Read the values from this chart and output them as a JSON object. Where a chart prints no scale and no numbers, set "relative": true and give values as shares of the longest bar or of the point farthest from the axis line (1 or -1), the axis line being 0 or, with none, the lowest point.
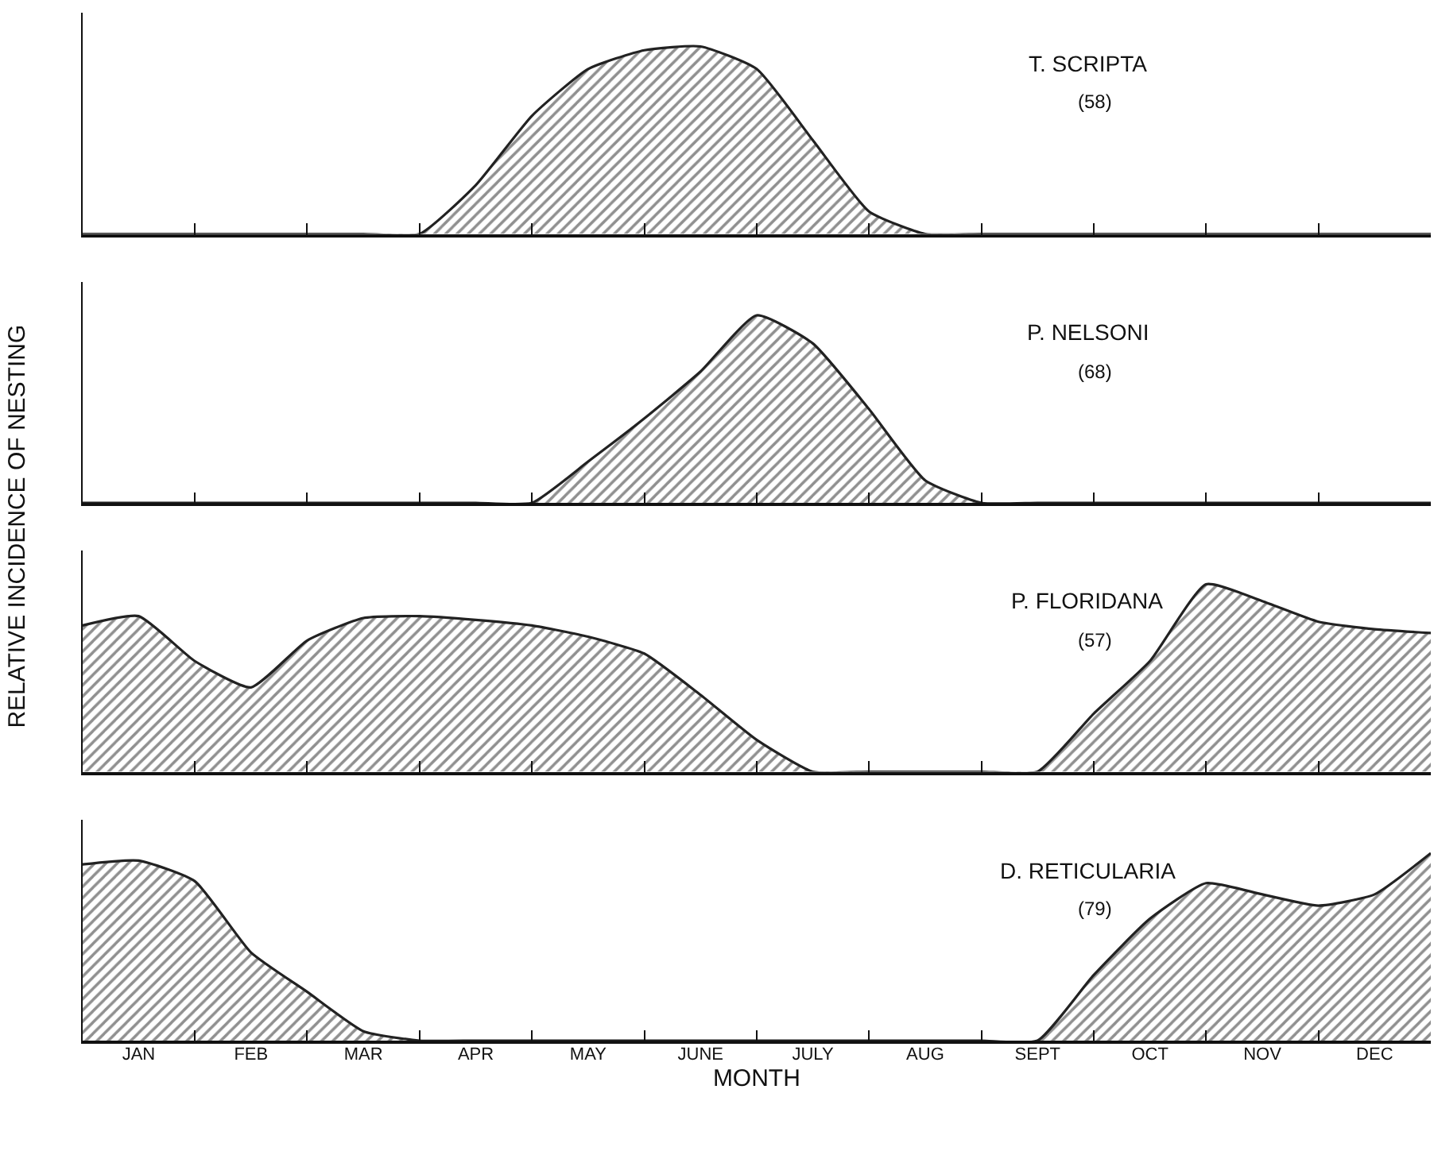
{
  "chart_data": [
    {
      "type": "area",
      "relative": true,
      "title": "T. SCRIPTA",
      "subtitle": "(58)",
      "ylabel": "RELATIVE INCIDENCE OF NESTING",
      "tick_labels": false,
      "categories": [
        null,
        null,
        null,
        null,
        null,
        null,
        null,
        null,
        null,
        null,
        null,
        null,
        null,
        null,
        null,
        null,
        null,
        null,
        null,
        null,
        null,
        null,
        null,
        null,
        null
      ],
      "series": [
        {
          "color": "#222222",
          "values": [
            0,
            0,
            0,
            0,
            0,
            0,
            0,
            0.26,
            0.63,
            0.88,
            0.98,
            1.0,
            0.88,
            0.5,
            0.12,
            0,
            0,
            0,
            0,
            0,
            0,
            0,
            0,
            0,
            0
          ]
        }
      ]
    },
    {
      "type": "area",
      "relative": true,
      "title": "P. NELSONI",
      "subtitle": "(68)",
      "tick_labels": false,
      "categories": [
        null,
        null,
        null,
        null,
        null,
        null,
        null,
        null,
        null,
        null,
        null,
        null,
        null,
        null,
        null,
        null,
        null,
        null,
        null,
        null,
        null,
        null,
        null,
        null,
        null
      ],
      "series": [
        {
          "color": "#222222",
          "values": [
            0,
            0,
            0,
            0,
            0,
            0,
            0,
            0,
            0,
            0.22,
            0.45,
            0.7,
            1.0,
            0.85,
            0.5,
            0.12,
            0,
            0,
            0,
            0,
            0,
            0,
            0,
            0,
            0
          ]
        }
      ]
    },
    {
      "type": "area",
      "relative": true,
      "title": "P. FLORIDANA",
      "subtitle": "(57)",
      "tick_labels": false,
      "categories": [
        null,
        null,
        null,
        null,
        null,
        null,
        null,
        null,
        null,
        null,
        null,
        null,
        null,
        null,
        null,
        null,
        null,
        null,
        null,
        null,
        null,
        null,
        null,
        null,
        null
      ],
      "series": [
        {
          "color": "#222222",
          "values": [
            0.78,
            0.83,
            0.59,
            0.45,
            0.7,
            0.82,
            0.83,
            0.81,
            0.78,
            0.72,
            0.63,
            0.41,
            0.17,
            0,
            0,
            0,
            0,
            0,
            0.31,
            0.59,
            1.0,
            0.91,
            0.8,
            0.76,
            0.74
          ]
        }
      ]
    },
    {
      "type": "area",
      "relative": true,
      "title": "D. RETICULARIA",
      "subtitle": "(79)",
      "xlabel": "MONTH",
      "tick_labels": "x",
      "categories": [
        null,
        "JAN",
        null,
        "FEB",
        null,
        "MAR",
        null,
        "APR",
        null,
        "MAY",
        null,
        "JUNE",
        null,
        "JULY",
        null,
        "AUG",
        null,
        "SEPT",
        null,
        "OCT",
        null,
        "NOV",
        null,
        "DEC",
        null
      ],
      "series": [
        {
          "color": "#222222",
          "values": [
            0.94,
            0.96,
            0.85,
            0.47,
            0.26,
            0.05,
            0,
            0,
            0,
            0,
            0,
            0,
            0,
            0,
            0,
            0,
            0,
            0,
            0.35,
            0.65,
            0.84,
            0.78,
            0.72,
            0.78,
            1.0
          ]
        }
      ]
    }
  ]
}
